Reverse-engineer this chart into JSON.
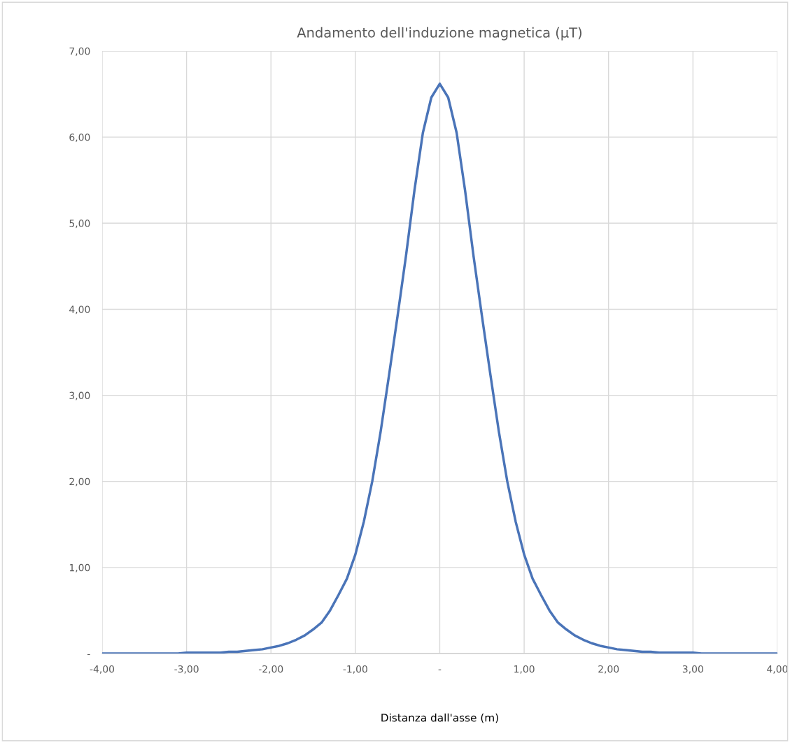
{
  "chart_data": {
    "type": "line",
    "title": "Andamento dell'induzione magnetica (µT)",
    "xlabel": "Distanza dall'asse (m)",
    "x": [
      -4.0,
      -3.9,
      -3.8,
      -3.7,
      -3.6,
      -3.5,
      -3.4,
      -3.3,
      -3.2,
      -3.1,
      -3.0,
      -2.9,
      -2.8,
      -2.7,
      -2.6,
      -2.5,
      -2.4,
      -2.3,
      -2.2,
      -2.1,
      -2.0,
      -1.9,
      -1.8,
      -1.7,
      -1.6,
      -1.5,
      -1.4,
      -1.3,
      -1.2,
      -1.1,
      -1.0,
      -0.9,
      -0.8,
      -0.7,
      -0.6,
      -0.5,
      -0.4,
      -0.3,
      -0.2,
      -0.1,
      0.0,
      0.1,
      0.2,
      0.3,
      0.4,
      0.5,
      0.6,
      0.7,
      0.8,
      0.9,
      1.0,
      1.1,
      1.2,
      1.3,
      1.4,
      1.5,
      1.6,
      1.7,
      1.8,
      1.9,
      2.0,
      2.1,
      2.2,
      2.3,
      2.4,
      2.5,
      2.6,
      2.7,
      2.8,
      2.9,
      3.0,
      3.1,
      3.2,
      3.3,
      3.4,
      3.5,
      3.6,
      3.7,
      3.8,
      3.9,
      4.0
    ],
    "series": [
      {
        "color": "#4a74b8",
        "values": [
          0.0,
          0.0,
          0.0,
          0.0,
          0.0,
          0.0,
          0.0,
          0.0,
          0.0,
          0.0,
          0.01,
          0.01,
          0.01,
          0.01,
          0.01,
          0.02,
          0.02,
          0.03,
          0.04,
          0.05,
          0.07,
          0.09,
          0.12,
          0.16,
          0.21,
          0.28,
          0.36,
          0.5,
          0.68,
          0.87,
          1.15,
          1.53,
          2.0,
          2.58,
          3.24,
          3.92,
          4.62,
          5.38,
          6.05,
          6.46,
          6.62,
          6.46,
          6.05,
          5.38,
          4.62,
          3.92,
          3.24,
          2.58,
          2.0,
          1.53,
          1.15,
          0.87,
          0.68,
          0.5,
          0.36,
          0.28,
          0.21,
          0.16,
          0.12,
          0.09,
          0.07,
          0.05,
          0.04,
          0.03,
          0.02,
          0.02,
          0.01,
          0.01,
          0.01,
          0.01,
          0.01,
          0.0,
          0.0,
          0.0,
          0.0,
          0.0,
          0.0,
          0.0,
          0.0,
          0.0,
          0.0
        ]
      }
    ],
    "xlim": [
      -4,
      4
    ],
    "ylim": [
      0,
      7
    ],
    "xticks": [
      {
        "value": -4,
        "label": "-4,00"
      },
      {
        "value": -3,
        "label": "-3,00"
      },
      {
        "value": -2,
        "label": "-2,00"
      },
      {
        "value": -1,
        "label": "-1,00"
      },
      {
        "value": 0,
        "label": "-"
      },
      {
        "value": 1,
        "label": "1,00"
      },
      {
        "value": 2,
        "label": "2,00"
      },
      {
        "value": 3,
        "label": "3,00"
      },
      {
        "value": 4,
        "label": "4,00"
      }
    ],
    "yticks": [
      {
        "value": 0,
        "label": "-"
      },
      {
        "value": 1,
        "label": "1,00"
      },
      {
        "value": 2,
        "label": "2,00"
      },
      {
        "value": 3,
        "label": "3,00"
      },
      {
        "value": 4,
        "label": "4,00"
      },
      {
        "value": 5,
        "label": "5,00"
      },
      {
        "value": 6,
        "label": "6,00"
      },
      {
        "value": 7,
        "label": "7,00"
      }
    ],
    "grid": true,
    "marker": "none",
    "line_style": "solid"
  }
}
